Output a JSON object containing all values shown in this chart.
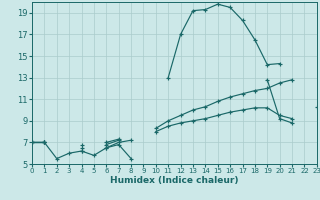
{
  "xlabel": "Humidex (Indice chaleur)",
  "xlim": [
    0,
    23
  ],
  "ylim": [
    5,
    20
  ],
  "xticks": [
    0,
    1,
    2,
    3,
    4,
    5,
    6,
    7,
    8,
    9,
    10,
    11,
    12,
    13,
    14,
    15,
    16,
    17,
    18,
    19,
    20,
    21,
    22,
    23
  ],
  "yticks": [
    5,
    7,
    9,
    11,
    13,
    15,
    17,
    19
  ],
  "bg_color": "#cce8e8",
  "grid_color": "#aacccc",
  "line_color": "#1a6868",
  "lines": [
    [
      7.0,
      7.0,
      5.5,
      6.0,
      6.2,
      5.8,
      6.5,
      6.8,
      5.5,
      null,
      null,
      13.0,
      17.0,
      19.2,
      19.3,
      19.8,
      19.5,
      18.3,
      16.5,
      14.2,
      14.3,
      null,
      null,
      null
    ],
    [
      7.0,
      7.0,
      null,
      null,
      6.2,
      null,
      6.5,
      7.0,
      7.2,
      null,
      null,
      null,
      null,
      null,
      null,
      null,
      null,
      null,
      null,
      12.8,
      9.2,
      8.8,
      null,
      10.3
    ],
    [
      7.0,
      7.0,
      null,
      null,
      6.5,
      null,
      6.8,
      7.2,
      null,
      null,
      8.0,
      8.5,
      8.8,
      9.0,
      9.2,
      9.5,
      9.8,
      10.0,
      10.2,
      10.2,
      9.5,
      9.2,
      null,
      null
    ],
    [
      7.0,
      7.0,
      null,
      null,
      6.8,
      null,
      7.0,
      7.3,
      null,
      null,
      8.3,
      9.0,
      9.5,
      10.0,
      10.3,
      10.8,
      11.2,
      11.5,
      11.8,
      12.0,
      12.5,
      12.8,
      null,
      null
    ]
  ]
}
